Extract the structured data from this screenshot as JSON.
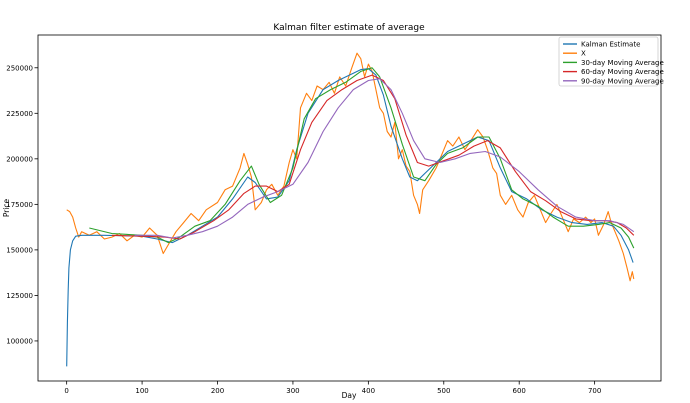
{
  "chart_data": {
    "type": "line",
    "title": "Kalman filter estimate of average",
    "xlabel": "Day",
    "ylabel": "Price",
    "xlim": [
      -38,
      788
    ],
    "ylim": [
      78000,
      268000
    ],
    "xticks": [
      0,
      100,
      200,
      300,
      400,
      500,
      600,
      700
    ],
    "yticks": [
      100000,
      125000,
      150000,
      175000,
      200000,
      225000,
      250000
    ],
    "ytick_labels": [
      "100000",
      "125000",
      "150000",
      "175000",
      "200000",
      "225000",
      "250000"
    ],
    "grid": false,
    "legend_position": "top-right",
    "series": [
      {
        "name": "Kalman Estimate",
        "color": "#1f77b4",
        "points": [
          [
            0,
            86000
          ],
          [
            1,
            110000
          ],
          [
            2,
            128000
          ],
          [
            3,
            140000
          ],
          [
            5,
            150000
          ],
          [
            8,
            155000
          ],
          [
            12,
            157500
          ],
          [
            20,
            158000
          ],
          [
            50,
            158000
          ],
          [
            100,
            157500
          ],
          [
            120,
            156000
          ],
          [
            140,
            154000
          ],
          [
            160,
            158000
          ],
          [
            180,
            163000
          ],
          [
            200,
            168000
          ],
          [
            220,
            178000
          ],
          [
            240,
            190000
          ],
          [
            250,
            187000
          ],
          [
            265,
            178000
          ],
          [
            280,
            179000
          ],
          [
            295,
            188000
          ],
          [
            305,
            205000
          ],
          [
            320,
            225000
          ],
          [
            340,
            238000
          ],
          [
            360,
            243000
          ],
          [
            380,
            247000
          ],
          [
            390,
            249000
          ],
          [
            400,
            249500
          ],
          [
            410,
            246000
          ],
          [
            420,
            235000
          ],
          [
            430,
            218000
          ],
          [
            445,
            200000
          ],
          [
            455,
            190000
          ],
          [
            465,
            188000
          ],
          [
            475,
            192000
          ],
          [
            490,
            198000
          ],
          [
            505,
            204000
          ],
          [
            525,
            208000
          ],
          [
            545,
            212000
          ],
          [
            560,
            210000
          ],
          [
            575,
            195000
          ],
          [
            590,
            182000
          ],
          [
            610,
            178000
          ],
          [
            630,
            172000
          ],
          [
            650,
            168000
          ],
          [
            670,
            165000
          ],
          [
            690,
            164000
          ],
          [
            710,
            165000
          ],
          [
            725,
            163000
          ],
          [
            735,
            158000
          ],
          [
            745,
            150000
          ],
          [
            751,
            143000
          ]
        ]
      },
      {
        "name": "X",
        "color": "#ff7f0e",
        "points": [
          [
            0,
            172000
          ],
          [
            4,
            171000
          ],
          [
            8,
            168000
          ],
          [
            12,
            162000
          ],
          [
            16,
            157000
          ],
          [
            20,
            160000
          ],
          [
            30,
            158000
          ],
          [
            40,
            160000
          ],
          [
            50,
            156000
          ],
          [
            60,
            157000
          ],
          [
            70,
            159000
          ],
          [
            80,
            155000
          ],
          [
            90,
            158000
          ],
          [
            100,
            157000
          ],
          [
            110,
            162000
          ],
          [
            120,
            158000
          ],
          [
            128,
            148000
          ],
          [
            135,
            153000
          ],
          [
            145,
            160000
          ],
          [
            155,
            165000
          ],
          [
            165,
            170000
          ],
          [
            175,
            166000
          ],
          [
            185,
            172000
          ],
          [
            200,
            176000
          ],
          [
            210,
            183000
          ],
          [
            220,
            185000
          ],
          [
            230,
            195000
          ],
          [
            235,
            203000
          ],
          [
            240,
            197000
          ],
          [
            245,
            190000
          ],
          [
            250,
            172000
          ],
          [
            258,
            176000
          ],
          [
            265,
            183000
          ],
          [
            272,
            186000
          ],
          [
            280,
            180000
          ],
          [
            288,
            185000
          ],
          [
            295,
            198000
          ],
          [
            300,
            205000
          ],
          [
            305,
            200000
          ],
          [
            310,
            228000
          ],
          [
            318,
            236000
          ],
          [
            325,
            232000
          ],
          [
            332,
            240000
          ],
          [
            340,
            238000
          ],
          [
            348,
            242000
          ],
          [
            355,
            236000
          ],
          [
            362,
            245000
          ],
          [
            370,
            240000
          ],
          [
            378,
            250000
          ],
          [
            385,
            258000
          ],
          [
            390,
            255000
          ],
          [
            395,
            245000
          ],
          [
            400,
            252000
          ],
          [
            405,
            248000
          ],
          [
            410,
            238000
          ],
          [
            415,
            228000
          ],
          [
            420,
            225000
          ],
          [
            425,
            215000
          ],
          [
            430,
            212000
          ],
          [
            435,
            220000
          ],
          [
            440,
            200000
          ],
          [
            445,
            205000
          ],
          [
            450,
            196000
          ],
          [
            455,
            193000
          ],
          [
            460,
            180000
          ],
          [
            465,
            175000
          ],
          [
            468,
            170000
          ],
          [
            472,
            183000
          ],
          [
            480,
            188000
          ],
          [
            490,
            195000
          ],
          [
            498,
            203000
          ],
          [
            505,
            210000
          ],
          [
            512,
            207000
          ],
          [
            520,
            212000
          ],
          [
            528,
            205000
          ],
          [
            536,
            210000
          ],
          [
            545,
            216000
          ],
          [
            552,
            212000
          ],
          [
            558,
            205000
          ],
          [
            565,
            195000
          ],
          [
            570,
            192000
          ],
          [
            575,
            180000
          ],
          [
            582,
            175000
          ],
          [
            590,
            180000
          ],
          [
            598,
            172000
          ],
          [
            605,
            168000
          ],
          [
            612,
            176000
          ],
          [
            620,
            180000
          ],
          [
            628,
            172000
          ],
          [
            635,
            165000
          ],
          [
            642,
            170000
          ],
          [
            650,
            175000
          ],
          [
            657,
            168000
          ],
          [
            665,
            160000
          ],
          [
            672,
            167000
          ],
          [
            680,
            165000
          ],
          [
            688,
            168000
          ],
          [
            695,
            165000
          ],
          [
            700,
            167000
          ],
          [
            705,
            158000
          ],
          [
            712,
            164000
          ],
          [
            718,
            171000
          ],
          [
            722,
            165000
          ],
          [
            727,
            160000
          ],
          [
            732,
            155000
          ],
          [
            738,
            148000
          ],
          [
            743,
            140000
          ],
          [
            747,
            133000
          ],
          [
            750,
            138000
          ],
          [
            752,
            134000
          ]
        ]
      },
      {
        "name": "30-day Moving Average",
        "color": "#2ca02c",
        "points": [
          [
            30,
            162000
          ],
          [
            60,
            159000
          ],
          [
            100,
            158000
          ],
          [
            120,
            157000
          ],
          [
            135,
            154000
          ],
          [
            150,
            157000
          ],
          [
            170,
            163000
          ],
          [
            190,
            166000
          ],
          [
            210,
            175000
          ],
          [
            230,
            188000
          ],
          [
            245,
            196000
          ],
          [
            255,
            186000
          ],
          [
            270,
            176000
          ],
          [
            285,
            180000
          ],
          [
            300,
            195000
          ],
          [
            315,
            222000
          ],
          [
            330,
            233000
          ],
          [
            350,
            238000
          ],
          [
            370,
            242000
          ],
          [
            390,
            248000
          ],
          [
            405,
            250000
          ],
          [
            415,
            245000
          ],
          [
            430,
            228000
          ],
          [
            445,
            208000
          ],
          [
            460,
            190000
          ],
          [
            475,
            188000
          ],
          [
            490,
            197000
          ],
          [
            505,
            203000
          ],
          [
            525,
            206000
          ],
          [
            545,
            212000
          ],
          [
            560,
            212000
          ],
          [
            575,
            200000
          ],
          [
            590,
            183000
          ],
          [
            605,
            178000
          ],
          [
            625,
            174000
          ],
          [
            645,
            168000
          ],
          [
            665,
            163000
          ],
          [
            685,
            163000
          ],
          [
            705,
            164000
          ],
          [
            720,
            165000
          ],
          [
            735,
            162000
          ],
          [
            745,
            157000
          ],
          [
            752,
            151000
          ]
        ]
      },
      {
        "name": "60-day Moving Average",
        "color": "#d62728",
        "points": [
          [
            60,
            158000
          ],
          [
            100,
            157500
          ],
          [
            130,
            157000
          ],
          [
            150,
            156000
          ],
          [
            170,
            160000
          ],
          [
            195,
            166000
          ],
          [
            215,
            172000
          ],
          [
            235,
            181000
          ],
          [
            250,
            185000
          ],
          [
            265,
            185000
          ],
          [
            280,
            182000
          ],
          [
            295,
            186000
          ],
          [
            310,
            205000
          ],
          [
            325,
            220000
          ],
          [
            345,
            232000
          ],
          [
            365,
            238000
          ],
          [
            385,
            243000
          ],
          [
            405,
            246000
          ],
          [
            420,
            243000
          ],
          [
            435,
            233000
          ],
          [
            450,
            213000
          ],
          [
            465,
            198000
          ],
          [
            480,
            196000
          ],
          [
            500,
            199000
          ],
          [
            520,
            202000
          ],
          [
            540,
            207000
          ],
          [
            558,
            210000
          ],
          [
            575,
            206000
          ],
          [
            595,
            193000
          ],
          [
            615,
            182000
          ],
          [
            635,
            177000
          ],
          [
            655,
            171000
          ],
          [
            675,
            167000
          ],
          [
            695,
            166000
          ],
          [
            715,
            166000
          ],
          [
            730,
            165000
          ],
          [
            742,
            162000
          ],
          [
            752,
            158000
          ]
        ]
      },
      {
        "name": "90-day Moving Average",
        "color": "#9467bd",
        "points": [
          [
            90,
            158000
          ],
          [
            120,
            158000
          ],
          [
            140,
            156500
          ],
          [
            160,
            158000
          ],
          [
            180,
            160000
          ],
          [
            200,
            163000
          ],
          [
            220,
            168000
          ],
          [
            240,
            175000
          ],
          [
            260,
            179000
          ],
          [
            280,
            182000
          ],
          [
            300,
            186000
          ],
          [
            320,
            198000
          ],
          [
            340,
            215000
          ],
          [
            360,
            228000
          ],
          [
            380,
            238000
          ],
          [
            400,
            243000
          ],
          [
            415,
            244000
          ],
          [
            430,
            238000
          ],
          [
            445,
            225000
          ],
          [
            460,
            210000
          ],
          [
            475,
            200000
          ],
          [
            495,
            198000
          ],
          [
            515,
            200000
          ],
          [
            535,
            203000
          ],
          [
            555,
            204000
          ],
          [
            575,
            201000
          ],
          [
            600,
            193000
          ],
          [
            625,
            183000
          ],
          [
            650,
            174000
          ],
          [
            675,
            168000
          ],
          [
            700,
            166000
          ],
          [
            720,
            166000
          ],
          [
            738,
            164000
          ],
          [
            752,
            160000
          ]
        ]
      }
    ]
  }
}
